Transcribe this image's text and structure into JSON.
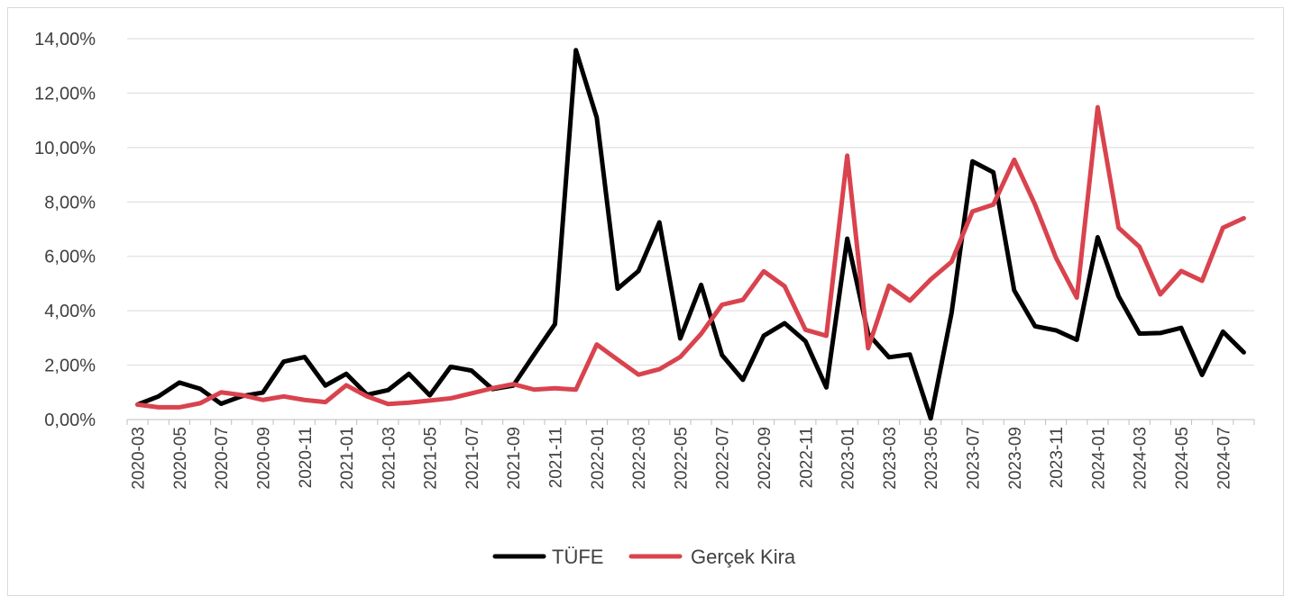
{
  "chart_data": {
    "type": "line",
    "x": [
      "2020-03",
      "2020-04",
      "2020-05",
      "2020-06",
      "2020-07",
      "2020-08",
      "2020-09",
      "2020-10",
      "2020-11",
      "2020-12",
      "2021-01",
      "2021-02",
      "2021-03",
      "2021-04",
      "2021-05",
      "2021-06",
      "2021-07",
      "2021-08",
      "2021-09",
      "2021-10",
      "2021-11",
      "2021-12",
      "2022-01",
      "2022-02",
      "2022-03",
      "2022-04",
      "2022-05",
      "2022-06",
      "2022-07",
      "2022-08",
      "2022-09",
      "2022-10",
      "2022-11",
      "2022-12",
      "2023-01",
      "2023-02",
      "2023-03",
      "2023-04",
      "2023-05",
      "2023-06",
      "2023-07",
      "2023-08",
      "2023-09",
      "2023-10",
      "2023-11",
      "2023-12",
      "2024-01",
      "2024-02",
      "2024-03",
      "2024-04",
      "2024-05",
      "2024-06",
      "2024-07",
      "2024-08"
    ],
    "x_tick_labels": [
      "2020-03",
      "2020-05",
      "2020-07",
      "2020-09",
      "2020-11",
      "2021-01",
      "2021-03",
      "2021-05",
      "2021-07",
      "2021-09",
      "2021-11",
      "2022-01",
      "2022-03",
      "2022-05",
      "2022-07",
      "2022-09",
      "2022-11",
      "2023-01",
      "2023-03",
      "2023-05",
      "2023-07",
      "2023-09",
      "2023-11",
      "2024-01",
      "2024-03",
      "2024-05",
      "2024-07"
    ],
    "ylim": [
      0,
      14
    ],
    "y_ticks": [
      0,
      2,
      4,
      6,
      8,
      10,
      12,
      14
    ],
    "y_tick_labels": [
      "0,00%",
      "2,00%",
      "4,00%",
      "6,00%",
      "8,00%",
      "10,00%",
      "12,00%",
      "14,00%"
    ],
    "grid": true,
    "legend_position": "bottom",
    "series": [
      {
        "name": "TÜFE",
        "color": "#000000",
        "values": [
          0.55,
          0.85,
          1.36,
          1.13,
          0.58,
          0.86,
          0.99,
          2.13,
          2.3,
          1.25,
          1.68,
          0.91,
          1.08,
          1.68,
          0.89,
          1.94,
          1.8,
          1.12,
          1.25,
          2.39,
          3.51,
          13.58,
          11.1,
          4.81,
          5.46,
          7.25,
          2.98,
          4.95,
          2.37,
          1.46,
          3.08,
          3.54,
          2.88,
          1.18,
          6.65,
          3.15,
          2.29,
          2.39,
          0.04,
          3.92,
          9.49,
          9.09,
          4.75,
          3.43,
          3.28,
          2.93,
          6.7,
          4.53,
          3.16,
          3.18,
          3.37,
          1.64,
          3.23,
          2.47
        ]
      },
      {
        "name": "Gerçek Kira",
        "color": "#d9434e",
        "values": [
          0.55,
          0.45,
          0.45,
          0.6,
          1.0,
          0.9,
          0.72,
          0.85,
          0.72,
          0.64,
          1.26,
          0.85,
          0.57,
          0.62,
          0.7,
          0.78,
          0.96,
          1.15,
          1.3,
          1.1,
          1.15,
          1.1,
          2.76,
          2.2,
          1.65,
          1.85,
          2.3,
          3.15,
          4.22,
          4.4,
          5.45,
          4.9,
          3.3,
          3.08,
          9.7,
          2.62,
          4.92,
          4.37,
          5.15,
          5.8,
          7.65,
          7.9,
          9.55,
          7.9,
          5.95,
          4.48,
          11.48,
          7.05,
          6.35,
          4.6,
          5.46,
          5.1,
          7.05,
          7.4
        ]
      }
    ]
  }
}
